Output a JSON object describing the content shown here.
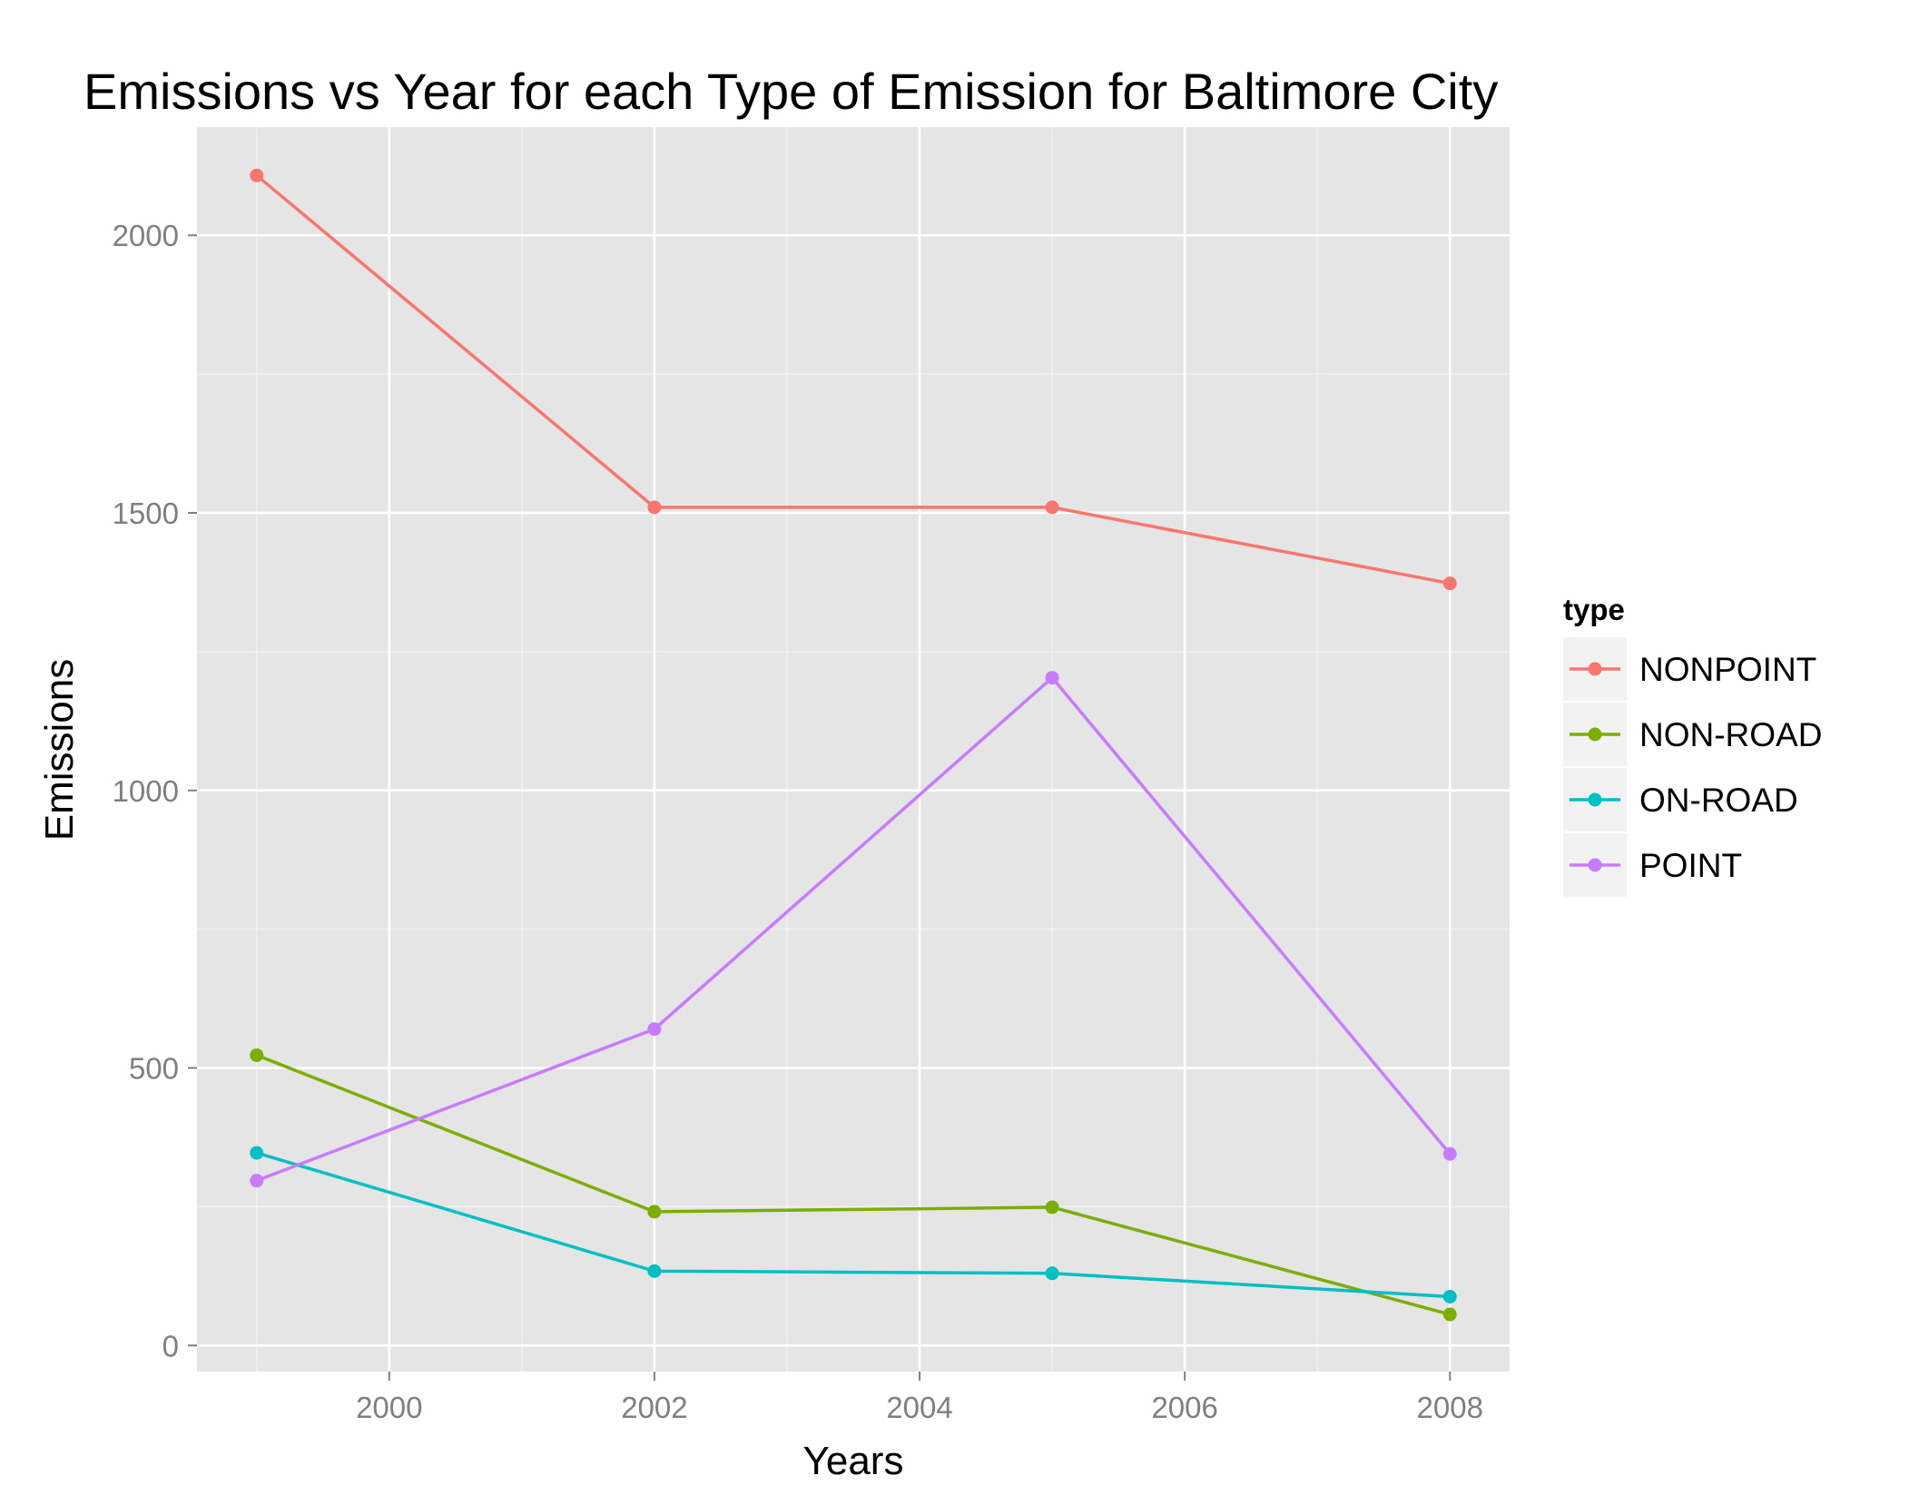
{
  "chart_data": {
    "type": "line",
    "title": "Emissions vs Year for each Type of Emission for Baltimore City",
    "xlabel": "Years",
    "ylabel": "Emissions",
    "x": [
      1999,
      2002,
      2005,
      2008
    ],
    "xticks": [
      2000,
      2002,
      2004,
      2006,
      2008
    ],
    "yticks": [
      0,
      500,
      1000,
      1500,
      2000
    ],
    "xlim": [
      1998.55,
      2008.45
    ],
    "ylim": [
      -47,
      2195
    ],
    "grid": true,
    "legend": {
      "title": "type",
      "placement": "right"
    },
    "series": [
      {
        "name": "NONPOINT",
        "color": "#F8766D",
        "values": [
          2108,
          1510,
          1510,
          1373
        ]
      },
      {
        "name": "NON-ROAD",
        "color": "#7CAE00",
        "values": [
          523,
          241,
          249,
          56
        ]
      },
      {
        "name": "ON-ROAD",
        "color": "#00BFC4",
        "values": [
          347,
          134,
          130,
          88
        ]
      },
      {
        "name": "POINT",
        "color": "#C77CFF",
        "values": [
          297,
          570,
          1203,
          345
        ]
      }
    ]
  }
}
